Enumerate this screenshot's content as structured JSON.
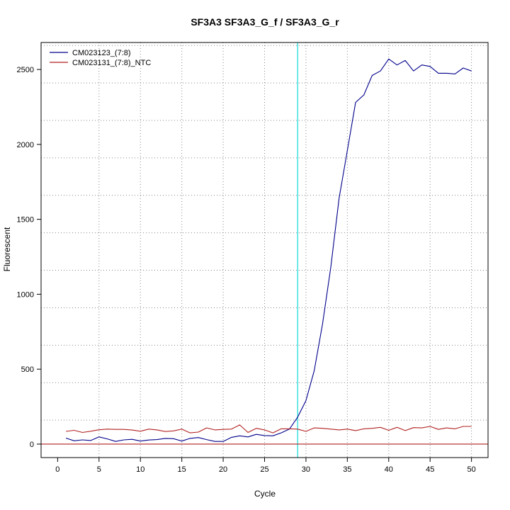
{
  "chart_data": {
    "type": "line",
    "title": "SF3A3  SF3A3_G_f / SF3A3_G_r",
    "xlabel": "Cycle",
    "ylabel": "Fluorescent",
    "xlim": [
      -2,
      52
    ],
    "ylim": [
      -90,
      2680
    ],
    "x_ticks": [
      0,
      5,
      10,
      15,
      20,
      25,
      30,
      35,
      40,
      45,
      50
    ],
    "y_ticks": [
      0,
      500,
      1000,
      1500,
      2000,
      2500
    ],
    "x_grid": [
      5,
      10,
      15,
      20,
      25,
      30,
      35,
      40,
      45,
      50
    ],
    "y_grid": [
      -90,
      160,
      410,
      660,
      910,
      1160,
      1410,
      1660,
      1910,
      2160,
      2410,
      2660
    ],
    "grid": true,
    "legend_position": "top-left",
    "threshold_x": 29,
    "threshold_color": "#40e0e0",
    "baseline_y": 0,
    "baseline_color": "#b22222",
    "x": [
      1,
      2,
      3,
      4,
      5,
      6,
      7,
      8,
      9,
      10,
      11,
      12,
      13,
      14,
      15,
      16,
      17,
      18,
      19,
      20,
      21,
      22,
      23,
      24,
      25,
      26,
      27,
      28,
      29,
      30,
      31,
      32,
      33,
      34,
      35,
      36,
      37,
      38,
      39,
      40,
      41,
      42,
      43,
      44,
      45,
      46,
      47,
      48,
      49,
      50
    ],
    "series": [
      {
        "name": "CM023123_(7:8)",
        "color": "#00008b",
        "values": [
          40,
          22,
          28,
          24,
          48,
          35,
          18,
          28,
          32,
          20,
          27,
          30,
          38,
          36,
          20,
          38,
          44,
          30,
          18,
          18,
          45,
          55,
          48,
          65,
          57,
          55,
          75,
          100,
          180,
          290,
          490,
          800,
          1180,
          1640,
          1960,
          2280,
          2330,
          2460,
          2490,
          2570,
          2530,
          2560,
          2490,
          2530,
          2520,
          2475,
          2475,
          2470,
          2510,
          2490
        ]
      },
      {
        "name": "CM023131_(7:8)_NTC",
        "color": "#b22222",
        "values": [
          85,
          92,
          78,
          86,
          96,
          100,
          98,
          98,
          94,
          86,
          100,
          95,
          84,
          88,
          100,
          75,
          80,
          108,
          95,
          98,
          100,
          128,
          78,
          105,
          95,
          75,
          102,
          102,
          100,
          85,
          108,
          105,
          100,
          95,
          100,
          90,
          102,
          105,
          112,
          92,
          112,
          90,
          110,
          108,
          118,
          98,
          108,
          102,
          118,
          118
        ]
      }
    ]
  }
}
